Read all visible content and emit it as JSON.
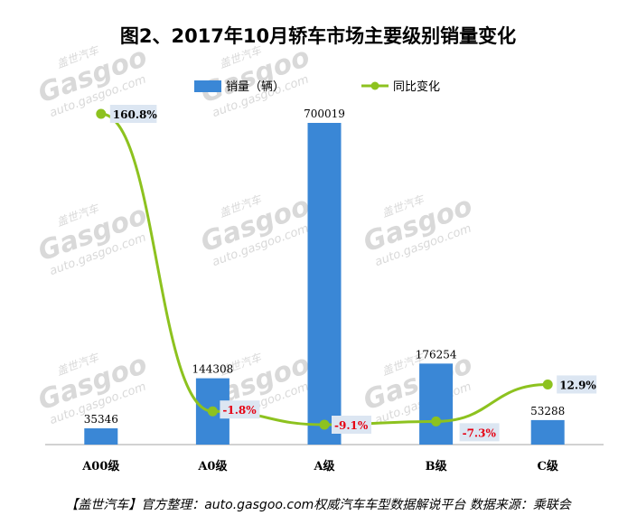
{
  "chart_data": {
    "type": "bar+line",
    "title": "图2、2017年10月轿车市场主要级别销量变化",
    "categories": [
      "A00级",
      "A0级",
      "A级",
      "B级",
      "C级"
    ],
    "series": [
      {
        "name": "销量（辆）",
        "type": "bar",
        "values": [
          35346,
          144308,
          700019,
          176254,
          53288
        ],
        "color": "#3a87d6"
      },
      {
        "name": "同比变化",
        "type": "line",
        "values": [
          160.8,
          -1.8,
          -9.1,
          -7.3,
          12.9
        ],
        "labels": [
          "160.8%",
          "-1.8%",
          "-9.1%",
          "-7.3%",
          "12.9%"
        ],
        "color": "#8dc21f"
      }
    ],
    "legend_position": "top-center",
    "grid": false,
    "negative_label_color": "#e60012"
  },
  "footer": "【盖世汽车】官方整理：auto.gasgoo.com权威汽车车型数据解说平台 数据来源：乘联会",
  "watermark": {
    "brand_cn": "盖世汽车",
    "brand": "Gasgoo",
    "url": "auto.gasgoo.com"
  }
}
